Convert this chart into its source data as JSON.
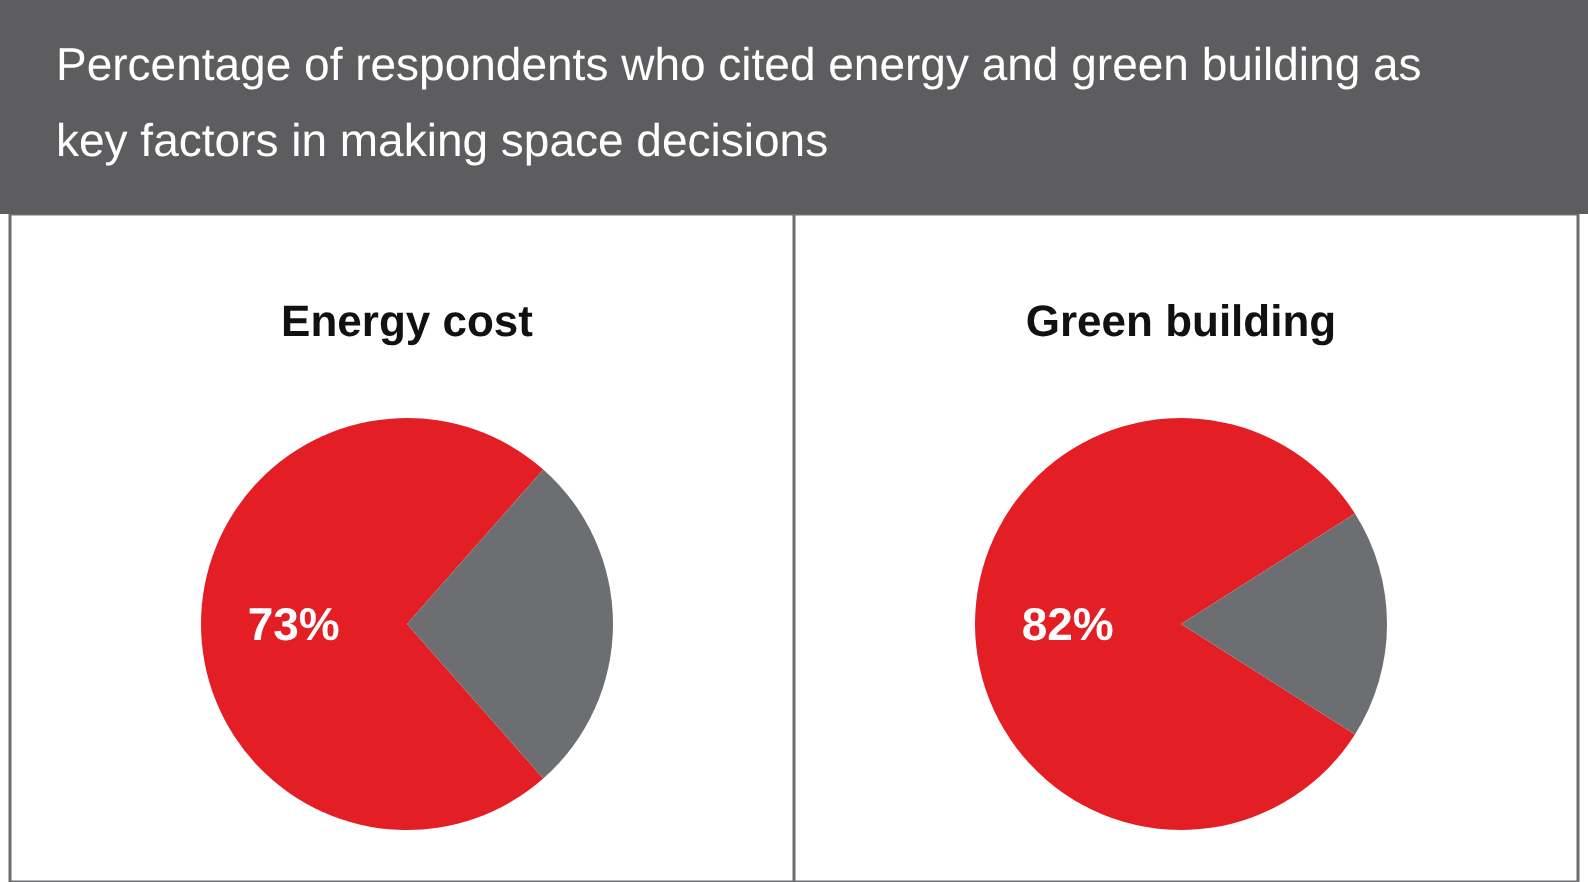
{
  "chart_data": [
    {
      "type": "other",
      "title": "Percentage of respondents who cited energy and green building as key factors in making space decisions"
    },
    {
      "type": "pie",
      "title": "Energy cost",
      "categories": [
        null,
        null
      ],
      "values": [
        73,
        27
      ],
      "colors": [
        "#e31e24",
        "#6d6e71"
      ],
      "value_labels": [
        "73%",
        null
      ]
    },
    {
      "type": "pie",
      "title": "Green building",
      "categories": [
        null,
        null
      ],
      "values": [
        82,
        18
      ],
      "colors": [
        "#e31e24",
        "#6d6e71"
      ],
      "value_labels": [
        "82%",
        null
      ]
    }
  ]
}
